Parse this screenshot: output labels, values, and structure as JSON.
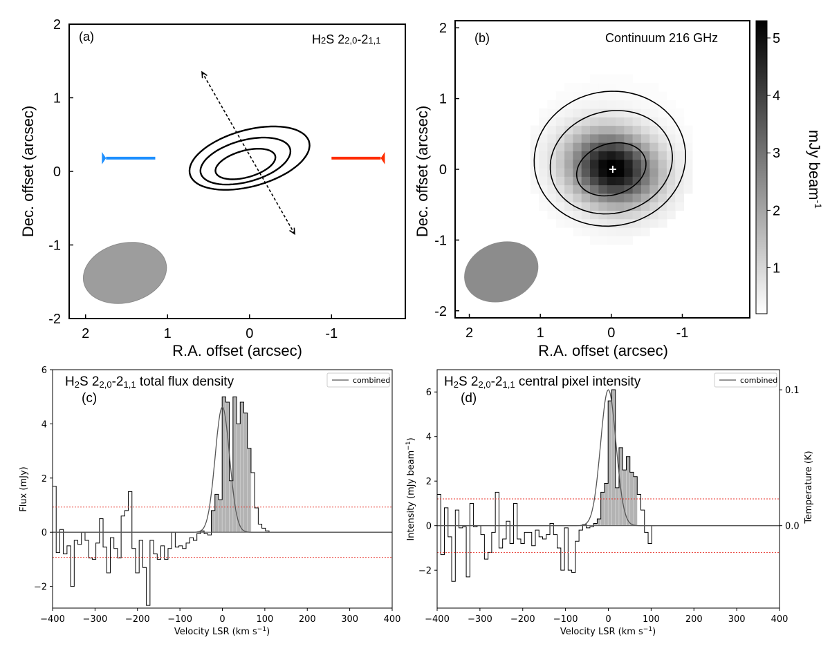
{
  "figure_name": "H2S and continuum multi-panel figure",
  "chart_data": [
    {
      "panel": "a",
      "type": "contour",
      "panel_label": "(a)",
      "line_label_main": "H",
      "line_label_sub1": "2",
      "line_label_mid": "S 2",
      "line_label_sub2": "2,0",
      "line_label_mid2": "-2",
      "line_label_sub3": "1,1",
      "xlabel": "R.A. offset (arcsec)",
      "ylabel": "Dec. offset (arcsec)",
      "xlim": [
        2.2,
        -1.9
      ],
      "ylim": [
        -2.0,
        2.0
      ],
      "xticks": [
        2,
        1,
        0,
        -1
      ],
      "xtick_labels": [
        "2",
        "1",
        "0",
        "-1"
      ],
      "yticks": [
        -2,
        -1,
        0,
        1,
        2
      ],
      "ytick_labels": [
        "-2",
        "-1",
        "0",
        "1",
        "2"
      ],
      "contours": [
        {
          "cx": 0.0,
          "cy": 0.18,
          "rx": 0.76,
          "ry": 0.38,
          "angle_deg": 18
        },
        {
          "cx": 0.05,
          "cy": 0.14,
          "rx": 0.57,
          "ry": 0.28,
          "angle_deg": 18
        },
        {
          "cx": 0.05,
          "cy": 0.1,
          "rx": 0.38,
          "ry": 0.18,
          "angle_deg": 18
        }
      ],
      "beam": {
        "cx": 1.52,
        "cy": -1.38,
        "major": 0.52,
        "minor": 0.4,
        "angle_deg": 20
      },
      "outflow_arrow": {
        "x1": 0.58,
        "y1": 1.35,
        "x2": -0.55,
        "y2": -0.85
      },
      "blue_lobe": {
        "x1": 1.15,
        "x2": 1.75,
        "y": 0.18,
        "color": "#1e90ff"
      },
      "red_lobe": {
        "x1": -1.0,
        "x2": -1.6,
        "y": 0.18,
        "color": "#ff2d00"
      }
    },
    {
      "panel": "b",
      "type": "heatmap",
      "panel_label": "(b)",
      "title": "Continuum 216 GHz",
      "xlabel": "R.A. offset (arcsec)",
      "ylabel": "Dec. offset (arcsec)",
      "xlim": [
        2.2,
        -1.95
      ],
      "ylim": [
        -2.1,
        2.1
      ],
      "xticks": [
        2,
        1,
        0,
        -1
      ],
      "xtick_labels": [
        "2",
        "1",
        "0",
        "-1"
      ],
      "yticks": [
        -2,
        -1,
        0,
        1,
        2
      ],
      "ytick_labels": [
        "-2",
        "-1",
        "0",
        "1",
        "2"
      ],
      "colorbar_label": "mJy beam",
      "colorbar_label_sup": "-1",
      "colorbar_range": [
        0.2,
        5.3
      ],
      "colorbar_ticks": [
        1,
        2,
        3,
        4,
        5
      ],
      "colorbar_tick_labels": [
        "1",
        "2",
        "3",
        "4",
        "5"
      ],
      "peak_mJy": 5.2,
      "peak_position": [
        0.0,
        0.0
      ],
      "contours": [
        {
          "cx": 0.0,
          "cy": 0.0,
          "rx": 0.5,
          "ry": 0.36,
          "angle_deg": 18
        },
        {
          "cx": 0.0,
          "cy": 0.1,
          "rx": 0.87,
          "ry": 0.72,
          "angle_deg": 15
        },
        {
          "cx": 0.02,
          "cy": 0.15,
          "rx": 1.07,
          "ry": 0.95,
          "angle_deg": 10
        }
      ],
      "beam": {
        "cx": 1.55,
        "cy": -1.45,
        "major": 0.53,
        "minor": 0.41,
        "angle_deg": 20
      },
      "center_marker": "+"
    },
    {
      "panel": "c",
      "type": "step_histogram",
      "panel_label": "(c)",
      "title_main": "H",
      "title_sub1": "2",
      "title_mid": "S 2",
      "title_sub2": "2,0",
      "title_mid2": "-2",
      "title_sub3": "1,1",
      "title_end": " total flux density",
      "xlabel": "Velocity LSR (km s",
      "xlabel_sup": "−1",
      "xlabel_end": ")",
      "ylabel": "Flux (mJy)",
      "xlim": [
        -400,
        400
      ],
      "ylim": [
        -2.8,
        6.0
      ],
      "xticks": [
        -400,
        -300,
        -200,
        -100,
        0,
        100,
        200,
        300,
        400
      ],
      "xtick_labels": [
        "−400",
        "−300",
        "−200",
        "−100",
        "0",
        "100",
        "200",
        "300",
        "400"
      ],
      "yticks": [
        -2,
        0,
        2,
        4,
        6
      ],
      "ytick_labels": [
        "−2",
        "0",
        "2",
        "4",
        "6"
      ],
      "legend": "combined",
      "channel_width": 8.5,
      "x_start": -400,
      "values": [
        1.7,
        -0.75,
        0.1,
        -0.8,
        -0.5,
        -2.0,
        -0.3,
        -0.45,
        0.0,
        -0.3,
        -0.95,
        -1.0,
        -0.4,
        0.5,
        -0.55,
        -1.5,
        -0.2,
        -0.6,
        -0.95,
        0.6,
        0.8,
        1.5,
        -0.6,
        -1.5,
        -0.3,
        -1.3,
        -2.7,
        -0.3,
        -0.8,
        -1.0,
        -0.5,
        -1.0,
        -0.6,
        0.0,
        -0.55,
        -0.5,
        -0.6,
        -0.4,
        -0.2,
        -0.3,
        -0.05,
        0.05,
        -0.05,
        -0.1,
        0.8,
        1.4,
        1.2,
        5.0,
        4.8,
        1.9,
        5.0,
        4.0,
        4.8,
        4.4,
        3.1,
        2.2,
        0.9,
        0.3,
        0.15,
        0.05
      ],
      "gaussian": {
        "amp": 4.62,
        "mean": 0.0,
        "sigma": 17
      },
      "noise_levels": [
        0.93,
        -0.93
      ]
    },
    {
      "panel": "d",
      "type": "step_histogram",
      "panel_label": "(d)",
      "title_main": "H",
      "title_sub1": "2",
      "title_mid": "S 2",
      "title_sub2": "2,0",
      "title_mid2": "-2",
      "title_sub3": "1,1",
      "title_end": " central pixel intensity",
      "xlabel": "Velocity LSR (km s",
      "xlabel_sup": "−1",
      "xlabel_end": ")",
      "ylabel": "Intensity (mJy beam",
      "ylabel_sup": "−1",
      "ylabel_end": ")",
      "ylabel_right": "Temperature (K)",
      "xlim": [
        -400,
        400
      ],
      "ylim": [
        -3.7,
        7.0
      ],
      "xticks": [
        -400,
        -300,
        -200,
        -100,
        0,
        100,
        200,
        300,
        400
      ],
      "xtick_labels": [
        "−400",
        "−300",
        "−200",
        "−100",
        "0",
        "100",
        "200",
        "300",
        "400"
      ],
      "yticks": [
        -2,
        0,
        2,
        4,
        6
      ],
      "ytick_labels": [
        "−2",
        "0",
        "2",
        "4",
        "6"
      ],
      "right_yticks": [
        0.0,
        0.1
      ],
      "right_ytick_labels": [
        "0.0",
        "0.1"
      ],
      "kelvin_per_mJy": 0.0164,
      "legend": "combined",
      "channel_width": 8.5,
      "x_start": -400,
      "values": [
        1.4,
        -1.3,
        0.8,
        -0.5,
        -2.5,
        0.7,
        -0.1,
        -0.05,
        -2.3,
        1.0,
        -0.05,
        0.0,
        -0.4,
        -1.5,
        -1.2,
        -0.3,
        1.5,
        -1.0,
        -0.6,
        0.2,
        -0.8,
        1.0,
        -0.6,
        -0.8,
        -0.3,
        -0.3,
        -0.9,
        -0.2,
        -0.5,
        -0.6,
        -0.4,
        0.1,
        -0.4,
        -1.0,
        -2.0,
        -0.1,
        -2.0,
        -2.1,
        -0.7,
        -0.2,
        0.05,
        -0.1,
        -0.05,
        0.1,
        0.3,
        1.5,
        1.9,
        5.6,
        6.1,
        1.7,
        3.5,
        2.5,
        3.1,
        2.4,
        2.2,
        1.4,
        0.7,
        -0.3,
        -0.8,
        0.0
      ],
      "gaussian": {
        "amp": 6.1,
        "mean": 0.0,
        "sigma": 18
      },
      "noise_levels": [
        1.2,
        -1.2
      ]
    }
  ]
}
